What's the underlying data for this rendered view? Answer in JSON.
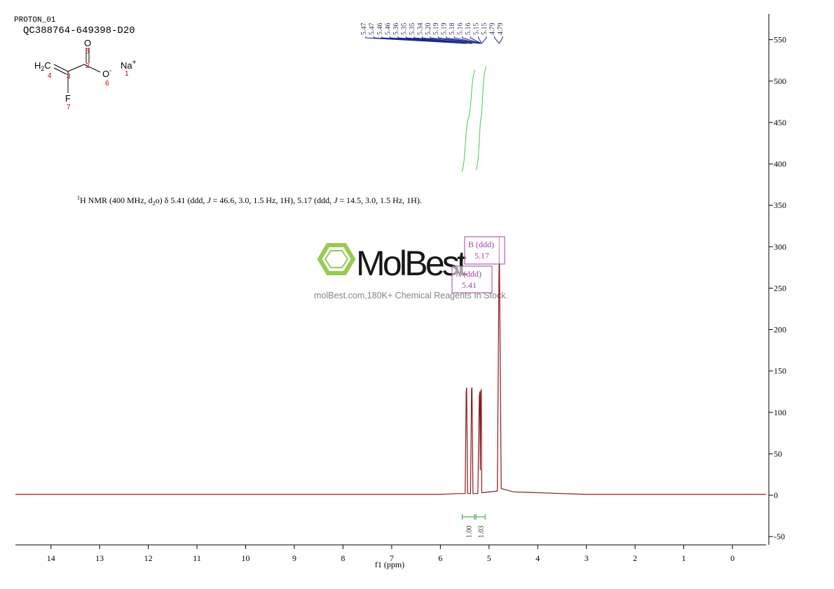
{
  "header": {
    "experiment": "PROTON_01",
    "sample": "QC388764-649398-D20"
  },
  "structure": {
    "ch2_h": "H",
    "ch2_sub": "2",
    "ch2_c": "C",
    "carbonyl_o": "O",
    "oxide_o": "O",
    "oxide_charge": "-",
    "sodium": "Na",
    "sodium_charge": "+",
    "fluorine": "F",
    "numbers": [
      "1",
      "2",
      "3",
      "4",
      "5",
      "6",
      "7"
    ]
  },
  "description": [
    "1",
    "H NMR (400 MHz, d",
    "2",
    "o) δ 5.41 (ddd, ",
    "J",
    " = 46.6, 3.0, 1.5 Hz, 1H), 5.17 (ddd, ",
    "J",
    " = 14.5, 3.0, 1.5 Hz, 1H)."
  ],
  "watermark": {
    "brand": "MolBest",
    "tagline": "molBest.com,180K+ Chemical Reagents In Stock."
  },
  "chart_data": {
    "type": "line",
    "x_label": "f1 (ppm)",
    "color": "#8b1a1a",
    "x": [
      14.73,
      12,
      10,
      8,
      6,
      5.6,
      5.49,
      5.47,
      5.46,
      5.44,
      5.38,
      5.36,
      5.35,
      5.33,
      5.23,
      5.2,
      5.19,
      5.18,
      5.17,
      5.16,
      5.15,
      5.13,
      4.83,
      4.79,
      4.75,
      4.5,
      3,
      1,
      -0.69
    ],
    "values": [
      1,
      1,
      1,
      1,
      1,
      2,
      2,
      125,
      130,
      2,
      2,
      128,
      130,
      2,
      2,
      120,
      125,
      30,
      125,
      128,
      3,
      3,
      5,
      312,
      8,
      4,
      1,
      1,
      1
    ],
    "xlim": [
      14.73,
      -0.69
    ],
    "xticks": [
      14,
      13,
      12,
      11,
      10,
      9,
      8,
      7,
      6,
      5,
      4,
      3,
      2,
      1,
      0
    ],
    "ylim": [
      -60,
      581
    ],
    "yticks": [
      -50,
      0,
      50,
      100,
      150,
      200,
      250,
      300,
      350,
      400,
      450,
      500,
      550
    ],
    "peaks": [
      {
        "value": 5.47,
        "label": "5.47"
      },
      {
        "value": 5.47,
        "label": "5.47"
      },
      {
        "value": 5.46,
        "label": "5.46"
      },
      {
        "value": 5.46,
        "label": "5.46"
      },
      {
        "value": 5.36,
        "label": "5.36"
      },
      {
        "value": 5.35,
        "label": "5.35"
      },
      {
        "value": 5.35,
        "label": "5.35"
      },
      {
        "value": 5.34,
        "label": "5.34"
      },
      {
        "value": 5.2,
        "label": "5.20"
      },
      {
        "value": 5.19,
        "label": "5.19"
      },
      {
        "value": 5.19,
        "label": "5.19"
      },
      {
        "value": 5.18,
        "label": "5.18"
      },
      {
        "value": 5.16,
        "label": "5.16"
      },
      {
        "value": 5.16,
        "label": "5.16"
      },
      {
        "value": 5.15,
        "label": "5.15"
      },
      {
        "value": 5.15,
        "label": "5.15"
      },
      {
        "value": 4.79,
        "label": "4.79"
      },
      {
        "value": 4.79,
        "label": "4.79"
      }
    ],
    "integrals": [
      {
        "value": 1,
        "label": "1.00",
        "range": [
          5.55,
          5.3
        ]
      },
      {
        "value": 1.03,
        "label": "1.03",
        "range": [
          5.27,
          5.08
        ]
      }
    ],
    "multiplets": [
      {
        "name": "B (ddd)",
        "shift": "5.17"
      },
      {
        "name": "A (ddd)",
        "shift": "5.41"
      }
    ]
  }
}
